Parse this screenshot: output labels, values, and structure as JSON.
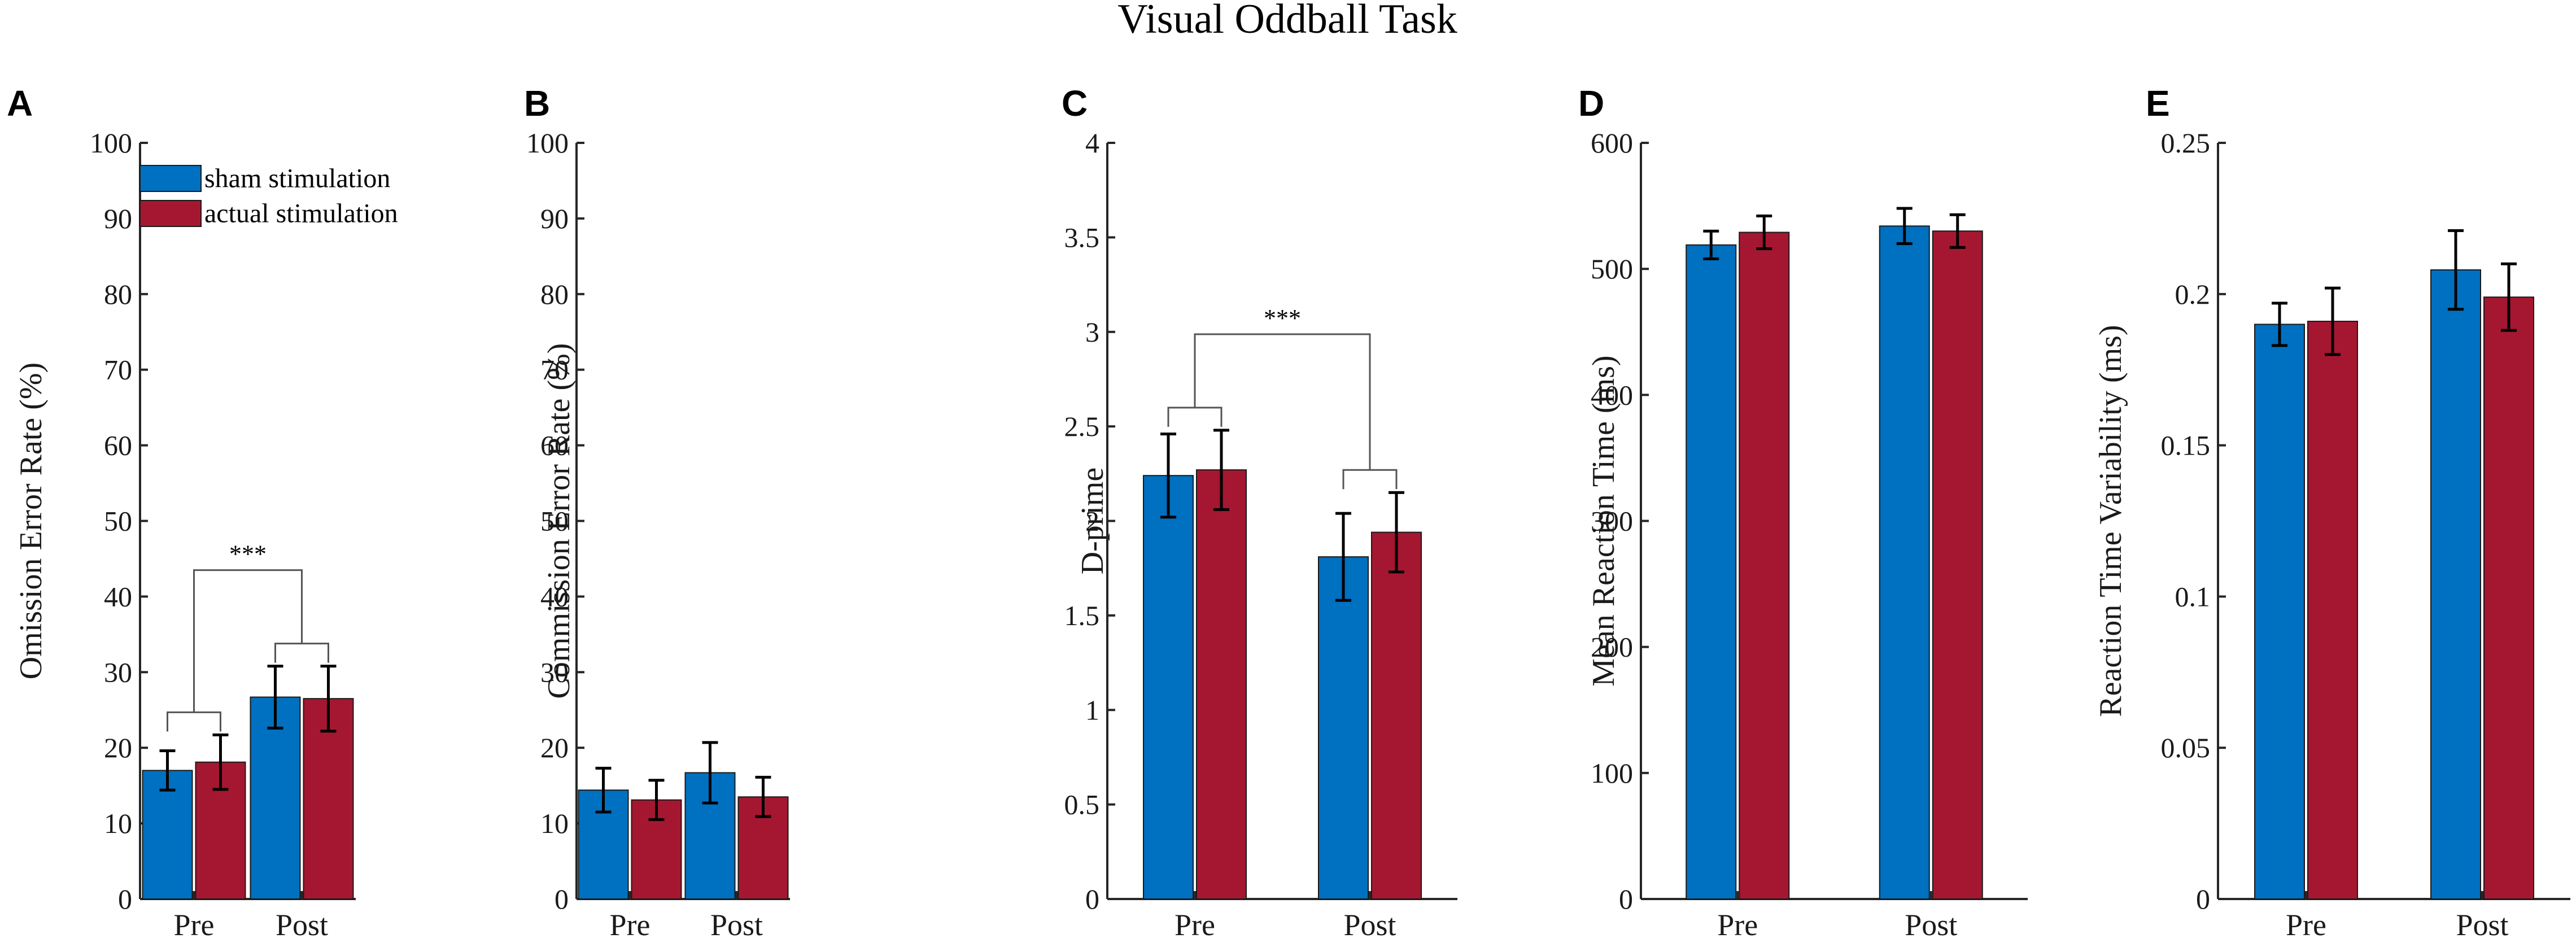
{
  "figure": {
    "title": "Visual Oddball Task",
    "legend": {
      "items": [
        {
          "label": "sham stimulation",
          "color": "#0070C0"
        },
        {
          "label": "actual stimulation",
          "color": "#A51730"
        }
      ]
    }
  },
  "chart_data": [
    {
      "type": "bar",
      "panel": "A",
      "title": "",
      "categories": [
        "Pre",
        "Post"
      ],
      "series": [
        {
          "name": "sham stimulation",
          "values": [
            17.0,
            26.7
          ],
          "errors": [
            2.6,
            4.1
          ]
        },
        {
          "name": "actual stimulation",
          "values": [
            18.1,
            26.5
          ],
          "errors": [
            3.6,
            4.3
          ]
        }
      ],
      "xlabel": "",
      "ylabel": "Omission Error Rate (%)",
      "ylim": [
        0,
        100
      ],
      "yticks": [
        0,
        10,
        20,
        30,
        40,
        50,
        60,
        70,
        80,
        90,
        100
      ],
      "legend": "top-left",
      "significance": {
        "label": "***",
        "pair_brackets": true
      }
    },
    {
      "type": "bar",
      "panel": "B",
      "title": "",
      "categories": [
        "Pre",
        "Post"
      ],
      "series": [
        {
          "name": "sham stimulation",
          "values": [
            14.4,
            16.7
          ],
          "errors": [
            2.9,
            4.0
          ]
        },
        {
          "name": "actual stimulation",
          "values": [
            13.1,
            13.5
          ],
          "errors": [
            2.6,
            2.6
          ]
        }
      ],
      "xlabel": "",
      "ylabel": "Commission Error Rate (%)",
      "ylim": [
        0,
        100
      ],
      "yticks": [
        0,
        10,
        20,
        30,
        40,
        50,
        60,
        70,
        80,
        90,
        100
      ]
    },
    {
      "type": "bar",
      "panel": "C",
      "title": "",
      "categories": [
        "Pre",
        "Post"
      ],
      "series": [
        {
          "name": "sham stimulation",
          "values": [
            2.24,
            1.81
          ],
          "errors": [
            0.22,
            0.23
          ]
        },
        {
          "name": "actual stimulation",
          "values": [
            2.27,
            1.94
          ],
          "errors": [
            0.21,
            0.21
          ]
        }
      ],
      "xlabel": "",
      "ylabel": "D-prime",
      "ylim": [
        0,
        4
      ],
      "yticks": [
        0,
        0.5,
        1,
        1.5,
        2,
        2.5,
        3,
        3.5,
        4
      ],
      "significance": {
        "label": "***",
        "pair_brackets": true
      }
    },
    {
      "type": "bar",
      "panel": "D",
      "title": "",
      "categories": [
        "Pre",
        "Post"
      ],
      "series": [
        {
          "name": "sham stimulation",
          "values": [
            519,
            534
          ],
          "errors": [
            11,
            14
          ]
        },
        {
          "name": "actual stimulation",
          "values": [
            529,
            530
          ],
          "errors": [
            13,
            13
          ]
        }
      ],
      "xlabel": "",
      "ylabel": "Mean Reaction Time (ms)",
      "ylim": [
        0,
        600
      ],
      "yticks": [
        0,
        100,
        200,
        300,
        400,
        500,
        600
      ]
    },
    {
      "type": "bar",
      "panel": "E",
      "title": "",
      "categories": [
        "Pre",
        "Post"
      ],
      "series": [
        {
          "name": "sham stimulation",
          "values": [
            0.19,
            0.208
          ],
          "errors": [
            0.007,
            0.013
          ]
        },
        {
          "name": "actual stimulation",
          "values": [
            0.191,
            0.199
          ],
          "errors": [
            0.011,
            0.011
          ]
        }
      ],
      "xlabel": "",
      "ylabel": "Reaction Time Variability (ms)",
      "ylim": [
        0,
        0.25
      ],
      "yticks": [
        0,
        0.05,
        0.1,
        0.15,
        0.2,
        0.25
      ]
    }
  ]
}
